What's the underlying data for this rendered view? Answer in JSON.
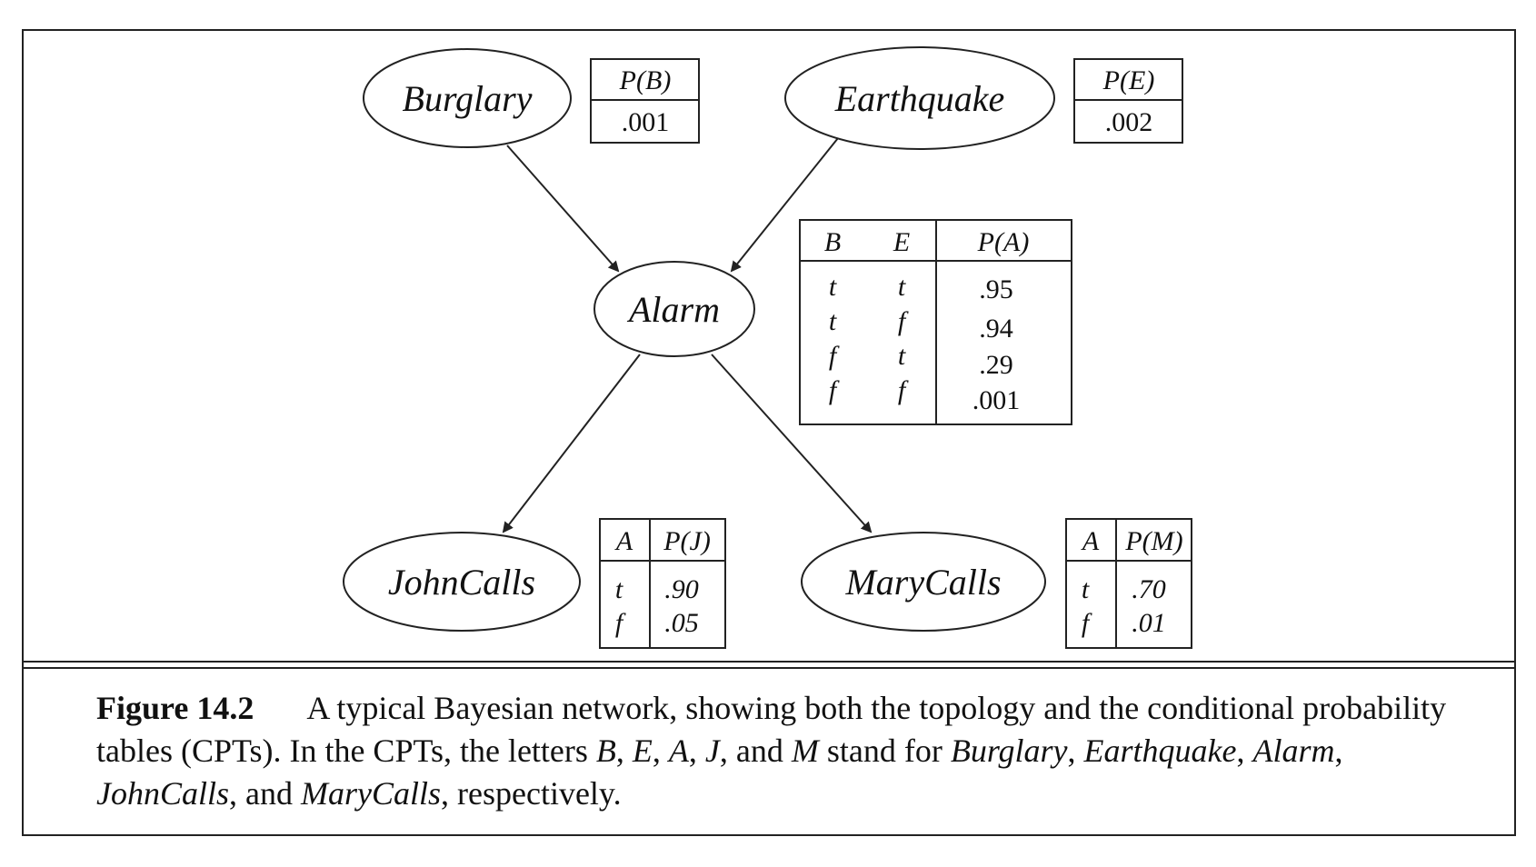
{
  "nodes": {
    "burglary": "Burglary",
    "earthquake": "Earthquake",
    "alarm": "Alarm",
    "johncalls": "JohnCalls",
    "marycalls": "MaryCalls"
  },
  "cpt_b": {
    "header": "P(B)",
    "value": ".001"
  },
  "cpt_e": {
    "header": "P(E)",
    "value": ".002"
  },
  "cpt_a": {
    "headers": [
      "B",
      "E",
      "P(A)"
    ],
    "rows": [
      [
        "t",
        "t",
        ".95"
      ],
      [
        "t",
        "f",
        ".94"
      ],
      [
        "f",
        "t",
        ".29"
      ],
      [
        "f",
        "f",
        ".001"
      ]
    ]
  },
  "cpt_j": {
    "headers": [
      "A",
      "P(J)"
    ],
    "rows": [
      [
        "t",
        ".90"
      ],
      [
        "f",
        ".05"
      ]
    ]
  },
  "cpt_m": {
    "headers": [
      "A",
      "P(M)"
    ],
    "rows": [
      [
        "t",
        ".70"
      ],
      [
        "f",
        ".01"
      ]
    ]
  },
  "caption": {
    "figure_number": "Figure 14.2",
    "text_1": "A typical Bayesian network, showing both the topology and the conditional probability tables (CPTs). In the CPTs, the letters ",
    "l_b": "B",
    "sep_1": ", ",
    "l_e": "E",
    "sep_2": ", ",
    "l_a": "A",
    "sep_3": ", ",
    "l_j": "J",
    "sep_4": ", and ",
    "l_m": "M",
    "text_2": " stand for ",
    "n_burglary": "Burglary",
    "sep_5": ", ",
    "n_earthquake": "Earthquake",
    "sep_6": ", ",
    "n_alarm": "Alarm",
    "sep_7": ", ",
    "n_johncalls": "JohnCalls",
    "sep_8": ", and ",
    "n_marycalls": "MaryCalls",
    "text_3": ", respectively."
  }
}
